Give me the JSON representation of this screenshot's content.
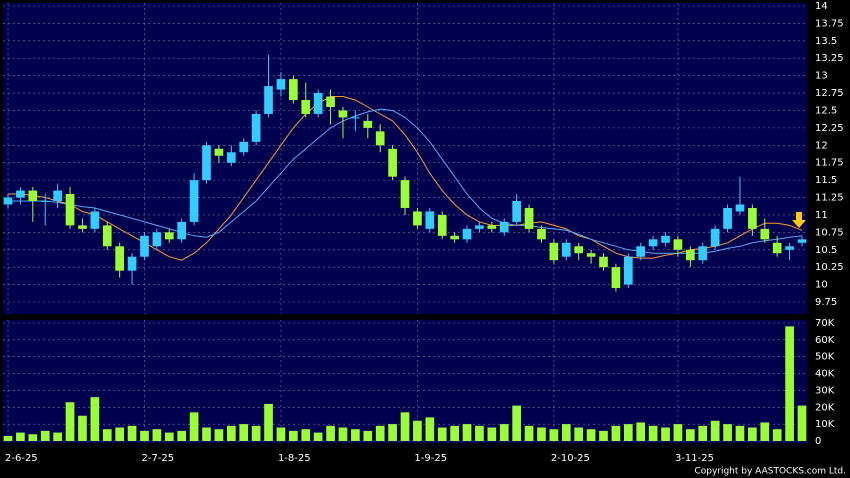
{
  "chart_data": {
    "type": "candlestick",
    "categories": [
      "2-6-25",
      null,
      null,
      null,
      null,
      null,
      null,
      null,
      null,
      null,
      null,
      "2-7-25",
      null,
      null,
      null,
      null,
      null,
      null,
      null,
      null,
      null,
      null,
      "1-8-25",
      null,
      null,
      null,
      null,
      null,
      null,
      null,
      null,
      null,
      null,
      "1-9-25",
      null,
      null,
      null,
      null,
      null,
      null,
      null,
      null,
      null,
      null,
      "2-10-25",
      null,
      null,
      null,
      null,
      null,
      null,
      null,
      null,
      null,
      "3-11-25",
      null,
      null,
      null,
      null,
      null,
      null,
      null,
      null,
      null,
      null
    ],
    "open": [
      11.15,
      11.25,
      11.35,
      11.2,
      11.2,
      11.3,
      10.85,
      10.8,
      10.85,
      10.55,
      10.2,
      10.4,
      10.55,
      10.75,
      10.65,
      10.9,
      11.5,
      11.95,
      11.75,
      11.9,
      12.05,
      12.45,
      12.8,
      12.95,
      12.65,
      12.45,
      12.7,
      12.5,
      12.4,
      12.35,
      12.2,
      11.95,
      11.5,
      11.05,
      10.8,
      11.0,
      10.7,
      10.65,
      10.8,
      10.85,
      10.75,
      10.9,
      11.1,
      10.8,
      10.6,
      10.4,
      10.55,
      10.45,
      10.4,
      10.25,
      10.0,
      10.4,
      10.55,
      10.6,
      10.65,
      10.5,
      10.35,
      10.55,
      10.8,
      11.05,
      11.1,
      10.8,
      10.6,
      10.5,
      10.6
    ],
    "high": [
      11.3,
      11.4,
      11.4,
      11.3,
      11.45,
      11.4,
      10.95,
      11.1,
      10.9,
      10.6,
      10.45,
      10.75,
      10.8,
      10.8,
      10.95,
      11.6,
      12.05,
      12.0,
      12.0,
      12.1,
      12.5,
      13.3,
      13.05,
      13.0,
      12.9,
      12.8,
      12.8,
      12.55,
      12.5,
      12.45,
      12.3,
      12.0,
      11.55,
      11.1,
      11.1,
      11.05,
      10.75,
      10.85,
      10.9,
      10.9,
      10.95,
      11.3,
      11.15,
      10.85,
      10.65,
      10.65,
      10.6,
      10.5,
      10.45,
      10.3,
      10.45,
      10.6,
      10.7,
      10.75,
      10.7,
      10.55,
      10.6,
      10.85,
      11.15,
      11.55,
      11.15,
      10.95,
      10.7,
      10.6,
      10.7
    ],
    "low": [
      11.1,
      11.15,
      10.9,
      10.85,
      11.1,
      10.8,
      10.75,
      10.75,
      10.5,
      10.1,
      10.0,
      10.35,
      10.5,
      10.6,
      10.6,
      10.85,
      11.45,
      11.75,
      11.7,
      11.85,
      12.0,
      12.4,
      12.7,
      12.6,
      12.4,
      12.4,
      12.3,
      12.1,
      12.2,
      12.1,
      11.9,
      11.5,
      11.0,
      10.8,
      10.75,
      10.65,
      10.6,
      10.6,
      10.75,
      10.75,
      10.7,
      10.85,
      10.75,
      10.6,
      10.3,
      10.35,
      10.35,
      10.3,
      10.2,
      9.9,
      9.95,
      10.35,
      10.5,
      10.55,
      10.4,
      10.25,
      10.3,
      10.5,
      10.75,
      11.0,
      10.7,
      10.6,
      10.4,
      10.35,
      10.55
    ],
    "close": [
      11.25,
      11.35,
      11.2,
      11.2,
      11.35,
      10.85,
      10.8,
      11.05,
      10.55,
      10.2,
      10.4,
      10.7,
      10.75,
      10.65,
      10.9,
      11.5,
      12.0,
      11.85,
      11.9,
      12.05,
      12.45,
      12.85,
      12.95,
      12.65,
      12.45,
      12.75,
      12.55,
      12.4,
      12.4,
      12.25,
      12.0,
      11.55,
      11.1,
      10.85,
      11.05,
      10.7,
      10.65,
      10.8,
      10.85,
      10.8,
      10.9,
      11.2,
      10.8,
      10.65,
      10.35,
      10.6,
      10.45,
      10.4,
      10.25,
      9.95,
      10.4,
      10.55,
      10.65,
      10.7,
      10.5,
      10.35,
      10.55,
      10.8,
      11.1,
      11.15,
      10.8,
      10.65,
      10.45,
      10.55,
      10.65
    ],
    "up_color": "#33ccff",
    "down_color": "#99ff33",
    "series": [
      {
        "color": "#ff9933",
        "values": [
          11.3,
          11.3,
          11.28,
          11.25,
          11.2,
          11.15,
          11.05,
          11.0,
          10.9,
          10.8,
          10.7,
          10.6,
          10.5,
          10.4,
          10.35,
          10.45,
          10.6,
          10.8,
          11.0,
          11.25,
          11.5,
          11.75,
          12.0,
          12.25,
          12.45,
          12.6,
          12.7,
          12.7,
          12.65,
          12.55,
          12.45,
          12.35,
          12.15,
          11.9,
          11.6,
          11.35,
          11.15,
          11.0,
          10.9,
          10.85,
          10.85,
          10.85,
          10.88,
          10.9,
          10.85,
          10.8,
          10.7,
          10.65,
          10.55,
          10.45,
          10.4,
          10.38,
          10.38,
          10.42,
          10.45,
          10.5,
          10.52,
          10.55,
          10.6,
          10.7,
          10.8,
          10.88,
          10.88,
          10.85,
          10.78
        ]
      },
      {
        "color": "#5aaaf0",
        "values": [
          11.2,
          11.2,
          11.2,
          11.2,
          11.18,
          11.15,
          11.12,
          11.1,
          11.05,
          11.0,
          10.95,
          10.9,
          10.85,
          10.8,
          10.75,
          10.7,
          10.68,
          10.75,
          10.9,
          11.05,
          11.2,
          11.4,
          11.6,
          11.8,
          11.95,
          12.1,
          12.25,
          12.35,
          12.42,
          12.48,
          12.52,
          12.5,
          12.4,
          12.25,
          12.05,
          11.8,
          11.55,
          11.3,
          11.1,
          10.95,
          10.88,
          10.85,
          10.85,
          10.82,
          10.8,
          10.78,
          10.72,
          10.65,
          10.6,
          10.55,
          10.5,
          10.48,
          10.45,
          10.45,
          10.45,
          10.45,
          10.45,
          10.48,
          10.52,
          10.55,
          10.6,
          10.63,
          10.65,
          10.68,
          10.7
        ]
      }
    ],
    "ylim": [
      9.75,
      14
    ],
    "yticks": [
      9.75,
      10,
      10.25,
      10.5,
      10.75,
      11,
      11.25,
      11.5,
      11.75,
      12,
      12.25,
      12.5,
      12.75,
      13,
      13.25,
      13.5,
      13.75,
      14
    ],
    "grid": true,
    "volume": {
      "type": "bar",
      "color": "#99ff33",
      "values": [
        3000,
        5000,
        4000,
        6000,
        5000,
        23000,
        15000,
        26000,
        7000,
        8000,
        9000,
        6000,
        7000,
        5000,
        6000,
        17000,
        8000,
        7000,
        9000,
        10000,
        9000,
        22000,
        8000,
        6000,
        7000,
        5000,
        9000,
        8000,
        7000,
        6000,
        9000,
        10000,
        17000,
        12000,
        14000,
        8000,
        9000,
        10000,
        9000,
        8000,
        10000,
        21000,
        9000,
        8000,
        7000,
        10000,
        8000,
        7000,
        6000,
        9000,
        10000,
        11000,
        9000,
        8000,
        10000,
        7000,
        9000,
        12000,
        10000,
        9000,
        8000,
        11000,
        7000,
        68000,
        21000
      ],
      "ylim": [
        0,
        70000
      ],
      "yticks": [
        0,
        {
          "value": 10000,
          "label": "10K"
        },
        {
          "value": 20000,
          "label": "20K"
        },
        {
          "value": 30000,
          "label": "30K"
        },
        {
          "value": 40000,
          "label": "40K"
        },
        {
          "value": 50000,
          "label": "50K"
        },
        {
          "value": 60000,
          "label": "60K"
        },
        {
          "value": 70000,
          "label": "70K"
        }
      ]
    },
    "copyright": "Copyright by AASTOCKS.com Ltd."
  }
}
